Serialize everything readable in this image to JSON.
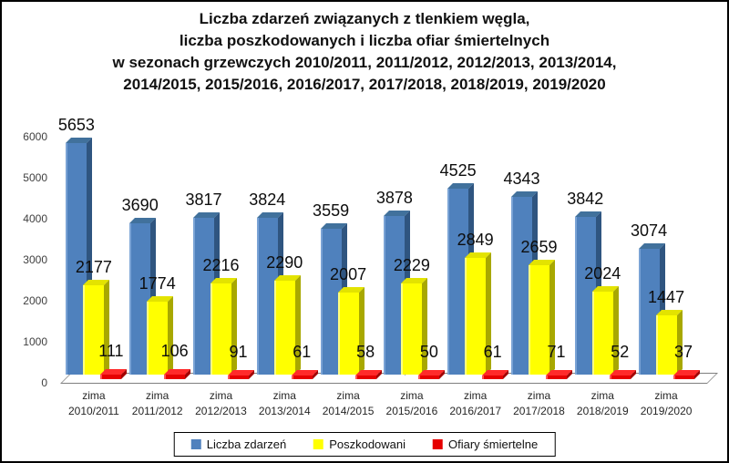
{
  "window": {
    "background": "#ffffff",
    "border_color": "#000000"
  },
  "title": {
    "lines": [
      "Liczba zdarzeń związanych z tlenkiem węgla,",
      "liczba poszkodowanych i liczba ofiar śmiertelnych",
      "w sezonach grzewczych 2010/2011, 2011/2012, 2012/2013, 2013/2014,",
      "2014/2015, 2015/2016, 2016/2017, 2017/2018, 2018/2019, 2019/2020"
    ]
  },
  "chart_data": {
    "type": "bar",
    "effect": "3d",
    "title": "Liczba zdarzeń związanych z tlenkiem węgla, liczba poszkodowanych i liczba ofiar śmiertelnych w sezonach grzewczych 2010/2011, 2011/2012, 2012/2013, 2013/2014, 2014/2015, 2015/2016, 2016/2017, 2017/2018, 2018/2019, 2019/2020",
    "categories": [
      {
        "top": "zima",
        "bottom": "2010/2011"
      },
      {
        "top": "zima",
        "bottom": "2011/2012"
      },
      {
        "top": "zima",
        "bottom": "2012/2013"
      },
      {
        "top": "zima",
        "bottom": "2013/2014"
      },
      {
        "top": "zima",
        "bottom": "2014/2015"
      },
      {
        "top": "zima",
        "bottom": "2015/2016"
      },
      {
        "top": "zima",
        "bottom": "2016/2017"
      },
      {
        "top": "zima",
        "bottom": "2017/2018"
      },
      {
        "top": "zima",
        "bottom": "2018/2019"
      },
      {
        "top": "zima",
        "bottom": "2019/2020"
      }
    ],
    "series": [
      {
        "key": "liczba-zdarzen",
        "name": "Liczba zdarzeń",
        "color": "#4f81bd",
        "color_top": "#41719c",
        "color_side": "#2f5580",
        "color_highlight": "#7aa3d5",
        "values": [
          5653,
          3690,
          3817,
          3824,
          3559,
          3878,
          4525,
          4343,
          3842,
          3074
        ]
      },
      {
        "key": "poszkodowani",
        "name": "Poszkodowani",
        "color": "#ffff00",
        "color_top": "#e3e300",
        "color_side": "#a8a800",
        "color_highlight": "#ffff80",
        "values": [
          2177,
          1774,
          2216,
          2290,
          2007,
          2229,
          2849,
          2659,
          2024,
          1447
        ]
      },
      {
        "key": "ofiary-smiertelne",
        "name": "Ofiary śmiertelne",
        "color": "#e60000",
        "color_top": "#ff2a2a",
        "color_side": "#a30000",
        "color_highlight": "#ff5555",
        "values": [
          111,
          106,
          91,
          61,
          58,
          50,
          61,
          71,
          52,
          37
        ]
      }
    ],
    "ylim": [
      0,
      6000
    ],
    "yticks": [
      0,
      1000,
      2000,
      3000,
      4000,
      5000,
      6000
    ],
    "grid": false,
    "legend_position": "bottom"
  }
}
